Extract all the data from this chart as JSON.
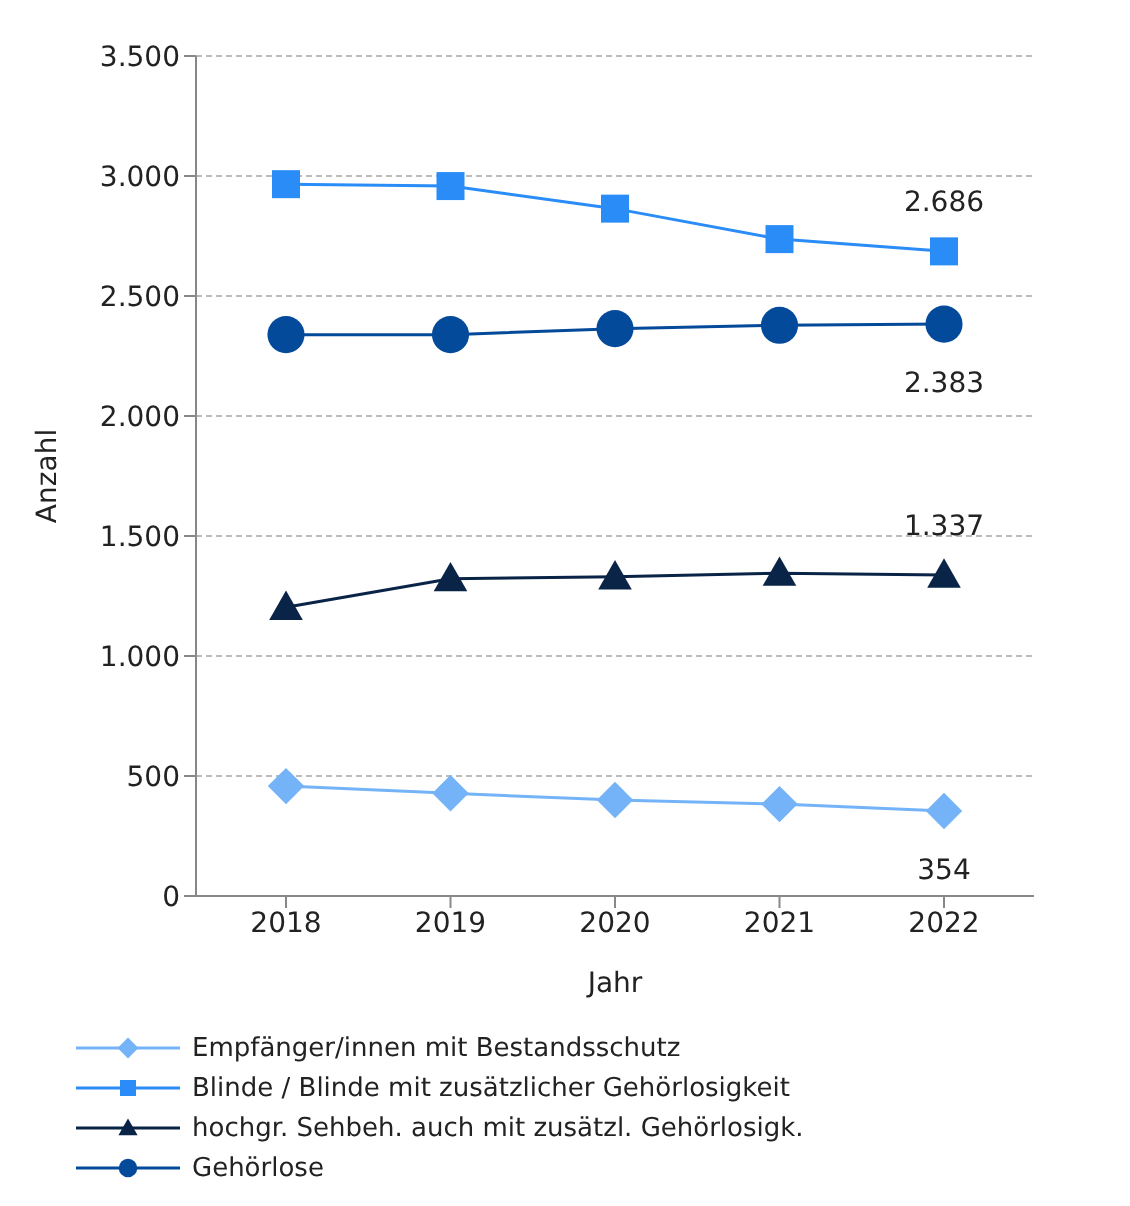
{
  "chart_data": {
    "type": "line",
    "xlabel": "Jahr",
    "ylabel": "Anzahl",
    "categories": [
      "2018",
      "2019",
      "2020",
      "2021",
      "2022"
    ],
    "ylim": [
      0,
      3500
    ],
    "yticks": [
      {
        "value": 0,
        "label": "0"
      },
      {
        "value": 500,
        "label": "500"
      },
      {
        "value": 1000,
        "label": "1.000"
      },
      {
        "value": 1500,
        "label": "1.500"
      },
      {
        "value": 2000,
        "label": "2.000"
      },
      {
        "value": 2500,
        "label": "2.500"
      },
      {
        "value": 3000,
        "label": "3.000"
      },
      {
        "value": 3500,
        "label": "3.500"
      }
    ],
    "grid": "y",
    "legend": "bottom",
    "series": [
      {
        "name": "Empfänger/innen mit Bestandsschutz",
        "color": "#74b3f7",
        "marker": "diamond",
        "values": [
          458,
          428,
          400,
          383,
          354
        ],
        "value_labels": [
          null,
          null,
          null,
          null,
          "354"
        ]
      },
      {
        "name": "Blinde / Blinde mit zusätzlicher Gehörlosigkeit",
        "color": "#2a8cf7",
        "marker": "square",
        "values": [
          2966,
          2958,
          2864,
          2737,
          2686
        ],
        "value_labels": [
          null,
          null,
          null,
          null,
          "2.686"
        ]
      },
      {
        "name": "hochgr. Sehbeh. auch mit zusätzl. Gehörlosigk.",
        "color": "#0a2447",
        "marker": "triangle",
        "values": [
          1203,
          1322,
          1330,
          1345,
          1337
        ],
        "value_labels": [
          null,
          null,
          null,
          null,
          "1.337"
        ]
      },
      {
        "name": "Gehörlose",
        "color": "#044a9a",
        "marker": "circle",
        "values": [
          2339,
          2339,
          2364,
          2378,
          2383
        ],
        "value_labels": [
          null,
          null,
          null,
          null,
          "2.383"
        ]
      }
    ]
  }
}
